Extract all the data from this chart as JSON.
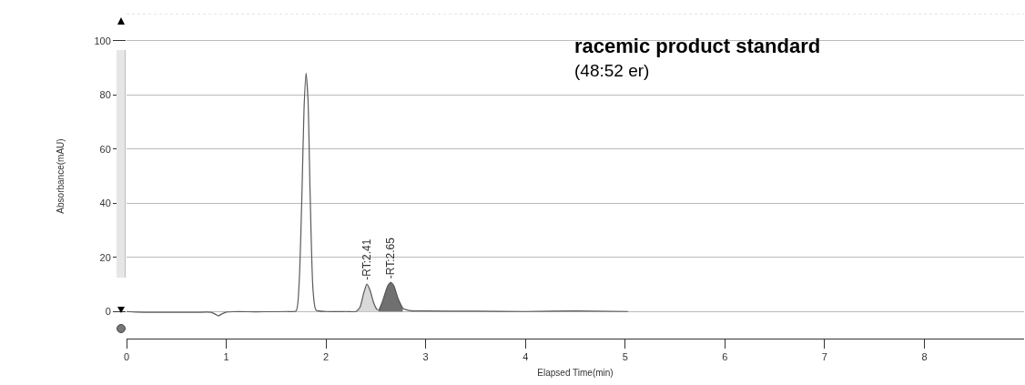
{
  "chart_data": {
    "type": "line",
    "title": "racemic product standard",
    "subtitle": "(48:52 er)",
    "xlabel": "Elapsed Time(min)",
    "ylabel": "Absorbance(mAU)",
    "xlim": [
      0,
      9
    ],
    "xticks": [
      0,
      1,
      2,
      3,
      4,
      5,
      6,
      7,
      8
    ],
    "ylim": [
      -10,
      110
    ],
    "yticks": [
      0,
      20,
      40,
      60,
      80,
      100
    ],
    "grid": "y",
    "marker": "none",
    "line_style": "solid",
    "series": [
      {
        "type": "line",
        "color": "#5a5a5a",
        "x": [
          0,
          0.1,
          0.3,
          0.5,
          0.7,
          0.85,
          0.9,
          0.92,
          0.95,
          1.0,
          1.3,
          1.6,
          1.7,
          1.73,
          1.76,
          1.78,
          1.8,
          1.82,
          1.84,
          1.87,
          1.9,
          2.0,
          2.2,
          2.3,
          2.34,
          2.38,
          2.41,
          2.44,
          2.48,
          2.51,
          2.53,
          2.57,
          2.62,
          2.65,
          2.68,
          2.72,
          2.77,
          2.85,
          3.0,
          3.5,
          4.0,
          4.5,
          5.03
        ],
        "values": [
          0,
          -0.2,
          -0.3,
          -0.3,
          -0.3,
          -0.3,
          -1.2,
          -1.6,
          -1,
          -0.2,
          -0.1,
          0,
          0.2,
          10,
          45,
          75,
          88,
          78,
          45,
          8,
          0.5,
          0,
          0,
          0,
          1.5,
          7,
          10.1,
          8,
          3,
          0.8,
          0.5,
          4,
          9.5,
          10.7,
          9.5,
          5,
          1.2,
          0.3,
          0.2,
          0.1,
          0,
          0.2,
          0
        ]
      },
      {
        "type": "area",
        "color": "#d9d9d9",
        "x": [
          2.3,
          2.34,
          2.38,
          2.41,
          2.44,
          2.48,
          2.51
        ],
        "values": [
          0,
          1.5,
          7,
          10.1,
          8,
          3,
          0.8
        ]
      },
      {
        "type": "area",
        "color": "#707070",
        "x": [
          2.53,
          2.57,
          2.62,
          2.65,
          2.68,
          2.72,
          2.77
        ],
        "values": [
          0.5,
          4,
          9.5,
          10.7,
          9.5,
          5,
          1.2
        ]
      }
    ],
    "annotations": [
      {
        "text": "-RT:2.41",
        "x": 2.41,
        "y": 10.1
      },
      {
        "text": "-RT:2.65",
        "x": 2.65,
        "y": 10.7
      }
    ]
  }
}
